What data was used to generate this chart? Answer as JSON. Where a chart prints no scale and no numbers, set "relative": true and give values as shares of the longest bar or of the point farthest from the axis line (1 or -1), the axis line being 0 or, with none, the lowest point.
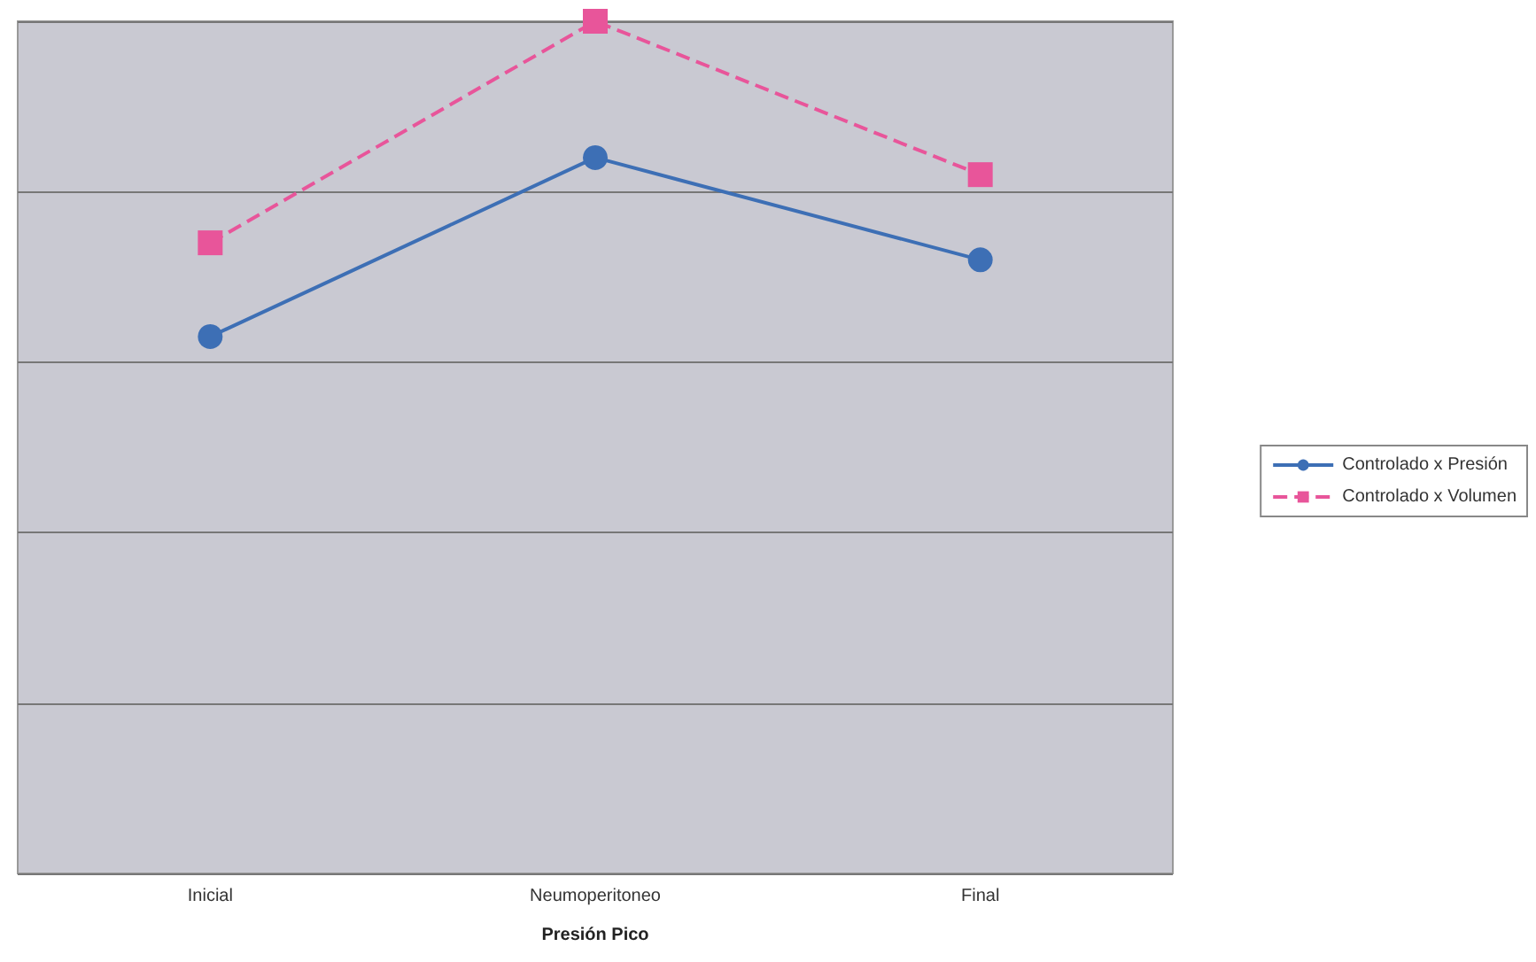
{
  "chart_data": {
    "type": "line",
    "xlabel": "Presión Pico",
    "categories": [
      "Inicial",
      "Neumoperitoneo",
      "Final"
    ],
    "relative": true,
    "grid": "y",
    "legend": "right",
    "series": [
      {
        "name": "Controlado x Presión",
        "color": "#3d6fb5",
        "marker": "circle",
        "line_style": "solid",
        "values": [
          0.63,
          0.84,
          0.72
        ]
      },
      {
        "name": "Controlado x Volumen",
        "color": "#e8559a",
        "marker": "square",
        "line_style": "dashed",
        "values": [
          0.74,
          1,
          0.82
        ]
      }
    ]
  }
}
